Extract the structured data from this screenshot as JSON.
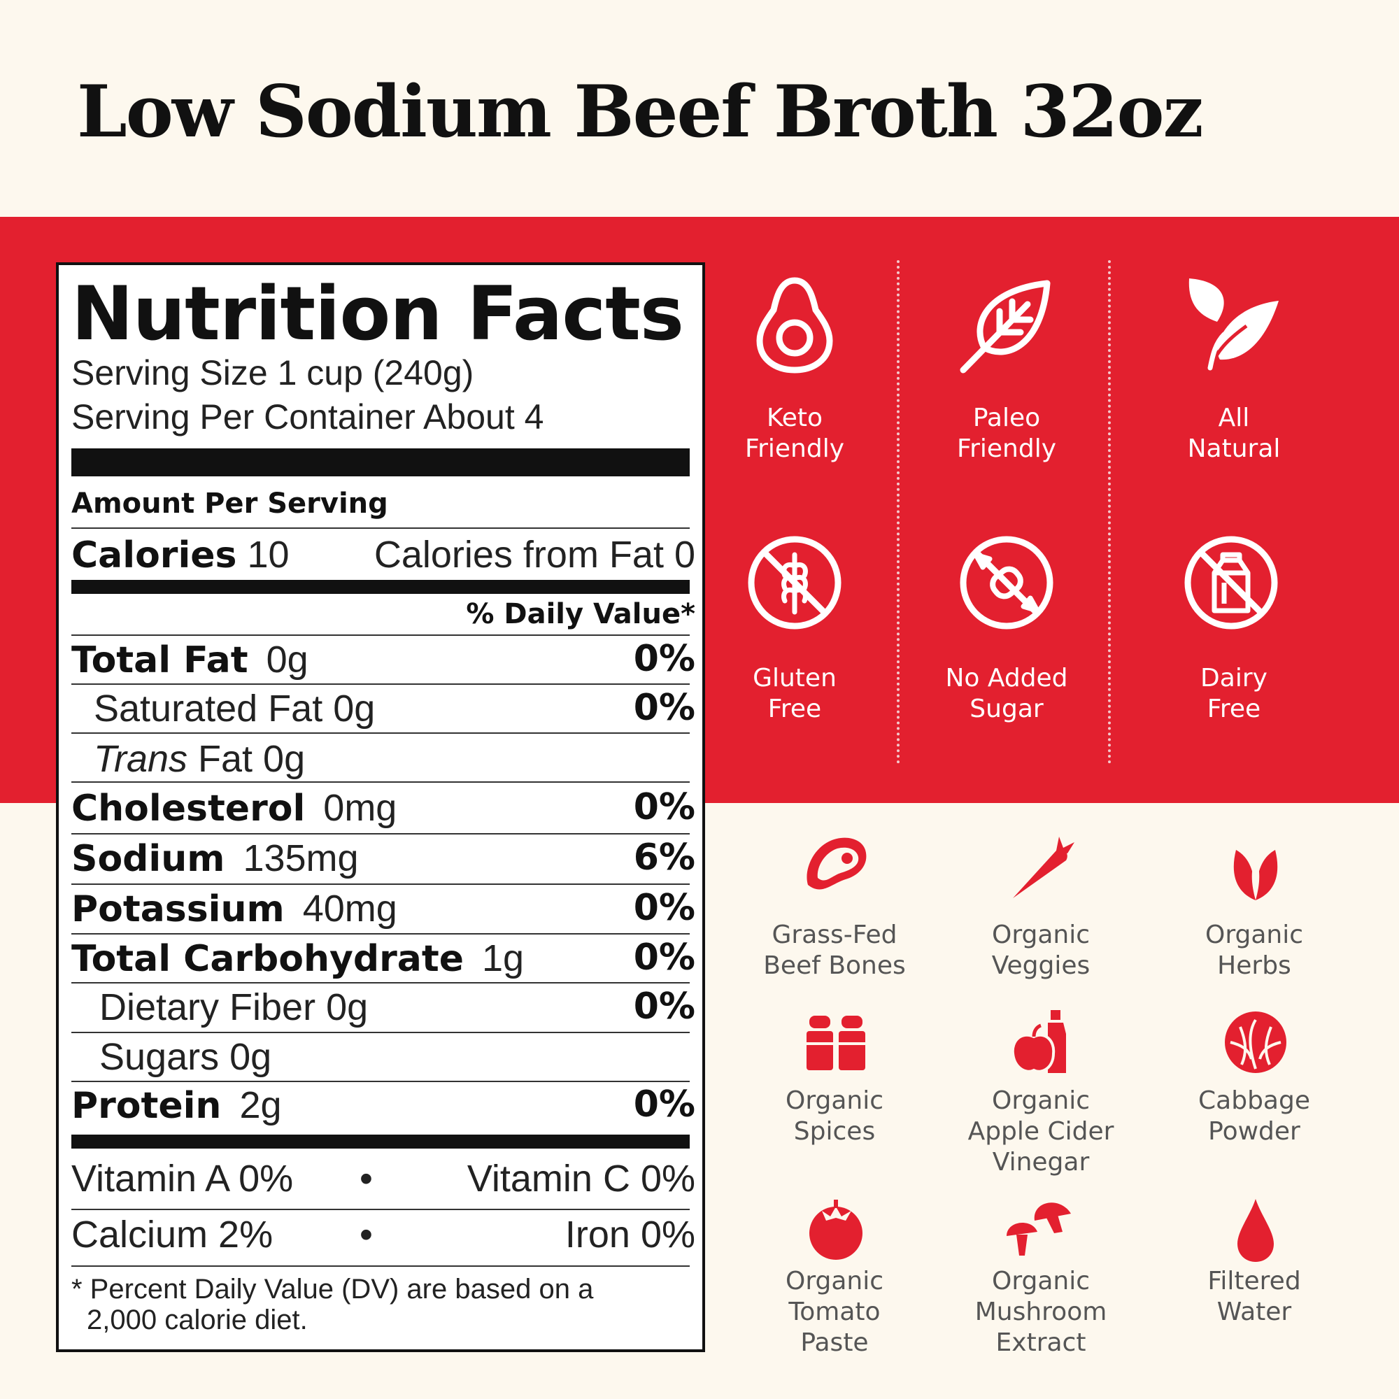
{
  "title": "Low Sodium Beef Broth 32oz",
  "nutrition": {
    "heading": "Nutrition Facts",
    "serving_size": "Serving Size 1 cup (240g)",
    "servings_per_container": "Serving Per Container About 4",
    "amount_per_serving": "Amount Per Serving",
    "calories_label": "Calories",
    "calories_value": "10",
    "calories_from_fat": "Calories from Fat 0",
    "daily_value_header": "% Daily Value*",
    "rows": [
      {
        "label": "Total Fat",
        "amount": "0g",
        "pct": "0%"
      },
      {
        "label": "Saturated Fat 0g",
        "amount": "",
        "pct": "0%"
      },
      {
        "label_italic": "Trans",
        "label": " Fat 0g",
        "amount": "",
        "pct": ""
      },
      {
        "label": "Cholesterol",
        "amount": "0mg",
        "pct": "0%"
      },
      {
        "label": "Sodium",
        "amount": "135mg",
        "pct": "6%"
      },
      {
        "label": "Potassium",
        "amount": "40mg",
        "pct": "0%"
      },
      {
        "label": "Total Carbohydrate",
        "amount": "1g",
        "pct": "0%"
      },
      {
        "label": "Dietary Fiber 0g",
        "amount": "",
        "pct": "0%"
      },
      {
        "label": "Sugars 0g",
        "amount": "",
        "pct": ""
      },
      {
        "label": "Protein",
        "amount": "2g",
        "pct": "0%"
      }
    ],
    "vitamin_a": "Vitamin A  0%",
    "vitamin_c": "Vitamin C  0%",
    "calcium": "Calcium 2%",
    "iron": "Iron 0%",
    "bullet": "•",
    "footnote_line1": "* Percent Daily Value (DV) are based on a",
    "footnote_line2": "2,000 calorie diet."
  },
  "badges": [
    {
      "line1": "Keto",
      "line2": "Friendly",
      "icon": "avocado-icon"
    },
    {
      "line1": "Paleo",
      "line2": "Friendly",
      "icon": "leaf-icon"
    },
    {
      "line1": "All",
      "line2": "Natural",
      "icon": "leaves-icon"
    },
    {
      "line1": "Gluten",
      "line2": "Free",
      "icon": "no-wheat-icon"
    },
    {
      "line1": "No Added",
      "line2": "Sugar",
      "icon": "no-candy-icon"
    },
    {
      "line1": "Dairy",
      "line2": "Free",
      "icon": "no-milk-icon"
    }
  ],
  "ingredients": [
    {
      "lines": [
        "Grass-Fed",
        "Beef Bones"
      ],
      "icon": "steak-icon"
    },
    {
      "lines": [
        "Organic",
        "Veggies"
      ],
      "icon": "carrot-icon"
    },
    {
      "lines": [
        "Organic",
        "Herbs"
      ],
      "icon": "herb-icon"
    },
    {
      "lines": [
        "Organic",
        "Spices"
      ],
      "icon": "spice-shakers-icon"
    },
    {
      "lines": [
        "Organic",
        "Apple Cider",
        "Vinegar"
      ],
      "icon": "apple-vinegar-icon"
    },
    {
      "lines": [
        "Cabbage",
        "Powder"
      ],
      "icon": "cabbage-icon"
    },
    {
      "lines": [
        "Organic",
        "Tomato",
        "Paste"
      ],
      "icon": "tomato-icon"
    },
    {
      "lines": [
        "Organic",
        "Mushroom",
        "Extract"
      ],
      "icon": "mushroom-icon"
    },
    {
      "lines": [
        "Filtered",
        "Water"
      ],
      "icon": "water-drop-icon"
    }
  ],
  "colors": {
    "red": "#e3202f",
    "cream": "#fdf8ee",
    "black": "#111111"
  }
}
